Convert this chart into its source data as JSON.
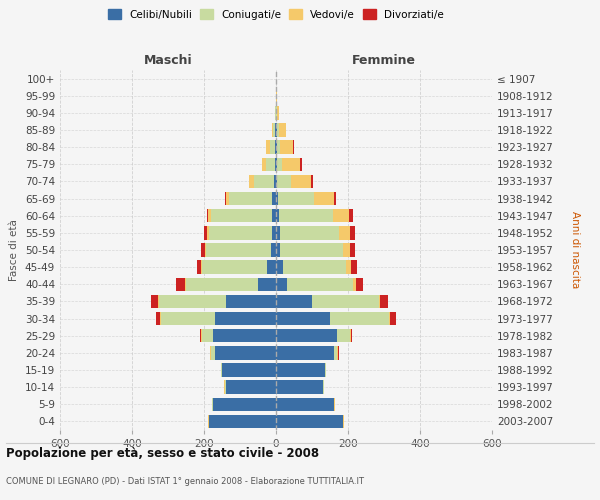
{
  "age_groups": [
    "100+",
    "95-99",
    "90-94",
    "85-89",
    "80-84",
    "75-79",
    "70-74",
    "65-69",
    "60-64",
    "55-59",
    "50-54",
    "45-49",
    "40-44",
    "35-39",
    "30-34",
    "25-29",
    "20-24",
    "15-19",
    "10-14",
    "5-9",
    "0-4"
  ],
  "birth_years": [
    "≤ 1907",
    "1908-1912",
    "1913-1917",
    "1918-1922",
    "1923-1927",
    "1928-1932",
    "1933-1937",
    "1938-1942",
    "1943-1947",
    "1948-1952",
    "1953-1957",
    "1958-1962",
    "1963-1967",
    "1968-1972",
    "1973-1977",
    "1978-1982",
    "1983-1987",
    "1988-1992",
    "1993-1997",
    "1998-2002",
    "2003-2007"
  ],
  "male_celibi": [
    0,
    0,
    0,
    2,
    2,
    3,
    5,
    10,
    10,
    12,
    15,
    25,
    50,
    140,
    170,
    175,
    170,
    150,
    140,
    175,
    185
  ],
  "male_coniugati": [
    0,
    0,
    2,
    5,
    15,
    25,
    55,
    120,
    170,
    175,
    180,
    180,
    200,
    185,
    150,
    30,
    10,
    2,
    2,
    2,
    2
  ],
  "male_vedovi": [
    0,
    1,
    2,
    5,
    10,
    12,
    15,
    10,
    8,
    5,
    3,
    2,
    2,
    2,
    2,
    2,
    2,
    2,
    2,
    2,
    2
  ],
  "male_divorziati": [
    0,
    0,
    0,
    0,
    0,
    0,
    0,
    2,
    5,
    8,
    10,
    12,
    25,
    20,
    12,
    5,
    2,
    0,
    0,
    0,
    0
  ],
  "female_celibi": [
    0,
    0,
    0,
    2,
    2,
    2,
    3,
    5,
    8,
    10,
    12,
    20,
    30,
    100,
    150,
    170,
    160,
    135,
    130,
    160,
    185
  ],
  "female_coniugati": [
    0,
    0,
    2,
    5,
    10,
    15,
    40,
    100,
    150,
    165,
    175,
    175,
    185,
    185,
    165,
    35,
    10,
    3,
    2,
    2,
    2
  ],
  "female_vedovi": [
    1,
    2,
    5,
    20,
    35,
    50,
    55,
    55,
    45,
    30,
    18,
    12,
    8,
    5,
    3,
    2,
    2,
    2,
    2,
    2,
    2
  ],
  "female_divorziati": [
    0,
    0,
    0,
    0,
    2,
    5,
    5,
    8,
    10,
    15,
    15,
    18,
    20,
    20,
    15,
    5,
    2,
    0,
    0,
    0,
    0
  ],
  "colors": {
    "celibi": "#3a6ea5",
    "coniugati": "#c8dba0",
    "vedovi": "#f5c96a",
    "divorziati": "#cc2222"
  },
  "xlim": 600,
  "title": "Popolazione per età, sesso e stato civile - 2008",
  "subtitle": "COMUNE DI LEGNARO (PD) - Dati ISTAT 1° gennaio 2008 - Elaborazione TUTTITALIA.IT",
  "ylabel_left": "Fasce di età",
  "ylabel_right": "Anni di nascita",
  "xlabel_left": "Maschi",
  "xlabel_right": "Femmine",
  "legend_labels": [
    "Celibi/Nubili",
    "Coniugati/e",
    "Vedovi/e",
    "Divorziati/e"
  ],
  "background_color": "#f5f5f5",
  "grid_color": "#cccccc"
}
